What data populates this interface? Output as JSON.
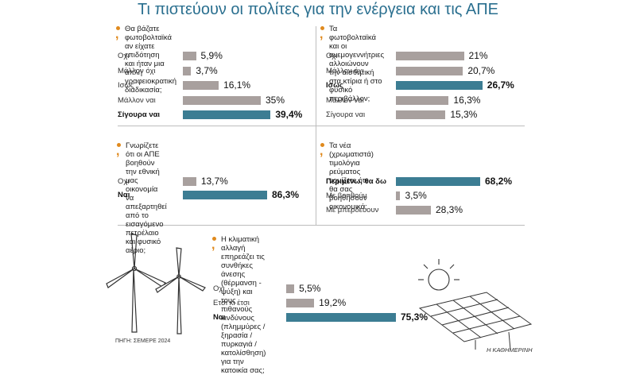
{
  "title": "Τι πιστεύουν οι πολίτες για την ενέργεια και τις ΑΠΕ",
  "source": "ΠΗΓΗ: ΣΕΜΕΡΕ 2024",
  "brand": "Η ΚΑΘΗΜΕΡΙΝΗ",
  "colors": {
    "gray": "#a8a09e",
    "teal": "#3c7d93",
    "accent": "#e08a1e",
    "title": "#2a6f8f"
  },
  "chart_data": [
    {
      "type": "bar",
      "question_lines": [
        "Θα βάζατε φωτοβολταϊκά αν είχατε επιδότηση",
        "και ήταν μια απλή γραφειοκρατική διαδικασία;"
      ],
      "categories": [
        "Οχι",
        "Μάλλον όχι",
        "Ισως",
        "Μάλλον ναι",
        "Σίγουρα ναι"
      ],
      "values": [
        5.9,
        3.7,
        16.1,
        35,
        39.4
      ],
      "labels": [
        "5,9%",
        "3,7%",
        "16,1%",
        "35%",
        "39,4%"
      ],
      "highlight": 4,
      "ylim": [
        0,
        40
      ]
    },
    {
      "type": "bar",
      "question_lines": [
        "Τα φωτοβολταϊκά και οι ανεμογεννήτριες αλλοιώνουν",
        "την αισθητική στα κτίρια ή στο φυσικό περιβάλλον;"
      ],
      "categories": [
        "Οχι",
        "Μάλλον όχι",
        "Ισως",
        "Μάλλον ναι",
        "Σίγουρα ναι"
      ],
      "values": [
        21,
        20.7,
        26.7,
        16.3,
        15.3
      ],
      "labels": [
        "21%",
        "20,7%",
        "26,7%",
        "16,3%",
        "15,3%"
      ],
      "highlight": 2,
      "ylim": [
        0,
        27
      ]
    },
    {
      "type": "bar",
      "question_lines": [
        "Γνωρίζετε ότι οι ΑΠΕ βοηθούν την εθνική μας",
        "οικονομία να απεξαρτηθεί από το εισαγόμενο",
        "πετρέλαιο και φυσικό αέριο;"
      ],
      "categories": [
        "Οχι",
        "Ναι"
      ],
      "values": [
        13.7,
        86.3
      ],
      "labels": [
        "13,7%",
        "86,3%"
      ],
      "highlight": 1,
      "ylim": [
        0,
        86.3
      ]
    },
    {
      "type": "bar",
      "question_lines": [
        "Τα νέα (χρωματιστά) τιμολόγια ρεύματος",
        "νομίζετε ότι θα σας βοηθήσουν οικονομικά;"
      ],
      "categories": [
        "Περιμένω, θα δω",
        "Με βοηθούν",
        "Με μπερδεύουν"
      ],
      "values": [
        68.2,
        3.5,
        28.3
      ],
      "labels": [
        "68,2%",
        "3,5%",
        "28,3%"
      ],
      "highlight": 0,
      "ylim": [
        0,
        68.2
      ]
    },
    {
      "type": "bar",
      "question_lines": [
        "Η κλιματική αλλαγή επηρεάζει τις συνθήκες άνεσης",
        "(θέρμανση - ψύξη) και τους πιθανούς κινδύνους",
        "(πλημμύρες / ξηρασία / πυρκαγιά / κατολίσθηση)",
        "για την κατοικία σας;"
      ],
      "categories": [
        "Οχι",
        "Ετσι κι έτσι",
        "Ναι"
      ],
      "values": [
        5.5,
        19.2,
        75.3
      ],
      "labels": [
        "5,5%",
        "19,2%",
        "75,3%"
      ],
      "highlight": 2,
      "ylim": [
        0,
        75.3
      ]
    }
  ]
}
